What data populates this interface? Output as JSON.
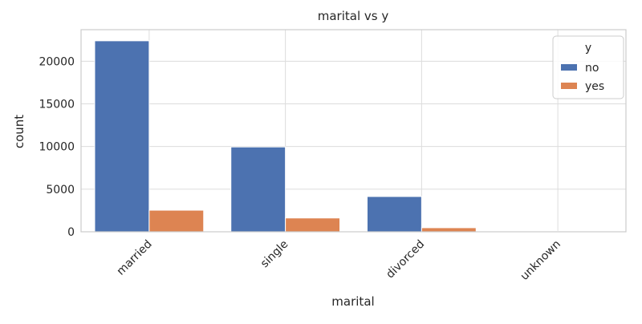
{
  "chart_data": {
    "type": "bar",
    "title": "marital vs y",
    "xlabel": "marital",
    "ylabel": "count",
    "categories": [
      "married",
      "single",
      "divorced",
      "unknown"
    ],
    "series": [
      {
        "name": "no",
        "values": [
          22396,
          9948,
          4136,
          68
        ],
        "color": "#4c72b0"
      },
      {
        "name": "yes",
        "values": [
          2532,
          1620,
          476,
          12
        ],
        "color": "#dd8452"
      }
    ],
    "ylim": [
      0,
      23700
    ],
    "yticks": [
      0,
      5000,
      10000,
      15000,
      20000
    ],
    "ytick_labels": [
      "0",
      "5000",
      "10000",
      "15000",
      "20000"
    ],
    "grid": true,
    "legend": {
      "title": "y",
      "placement": "top-right"
    }
  }
}
